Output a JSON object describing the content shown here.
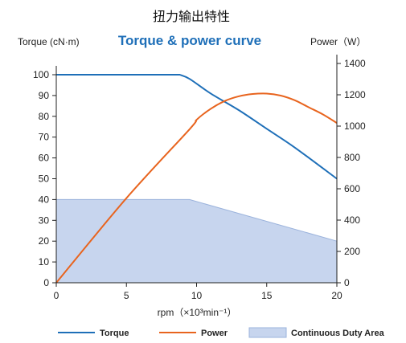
{
  "chart_data": {
    "type": "line",
    "title": "扭力输出特性",
    "subtitle": "Torque & power curve",
    "xlabel": "rpm（×10³min⁻¹）",
    "ylabel_left": "Torque (cN·m)",
    "ylabel_right": "Power（W）",
    "xlim": [
      0,
      20
    ],
    "ylim_left": [
      0,
      100
    ],
    "ylim_right": [
      0,
      1400
    ],
    "x_ticks": [
      0,
      5,
      10,
      15,
      20
    ],
    "y_left_ticks": [
      0,
      10,
      20,
      30,
      40,
      50,
      60,
      70,
      80,
      90,
      100
    ],
    "y_right_ticks": [
      0,
      200,
      400,
      600,
      800,
      1000,
      1200,
      1400
    ],
    "grid": false,
    "legend_position": "bottom",
    "series": [
      {
        "name": "Torque",
        "axis": "left",
        "color": "#1e6fb8",
        "x": [
          0,
          8.8,
          9.5,
          11,
          13,
          15,
          17,
          20
        ],
        "y": [
          100,
          100,
          98,
          91,
          83,
          74,
          65,
          50
        ]
      },
      {
        "name": "Power",
        "axis": "right",
        "color": "#e8641e",
        "x": [
          0,
          5,
          9.5,
          10,
          11,
          12,
          13,
          14,
          15,
          16,
          17,
          18,
          19,
          20
        ],
        "y": [
          0,
          540,
          980,
          1040,
          1110,
          1160,
          1190,
          1205,
          1208,
          1195,
          1165,
          1120,
          1075,
          1020
        ]
      },
      {
        "name": "Continuous Duty Area",
        "axis": "left",
        "type": "area",
        "color": "#c7d5ee",
        "edge_color": "#9bb3dc",
        "x": [
          0,
          9.5,
          20
        ],
        "y": [
          40,
          40,
          20
        ]
      }
    ]
  }
}
